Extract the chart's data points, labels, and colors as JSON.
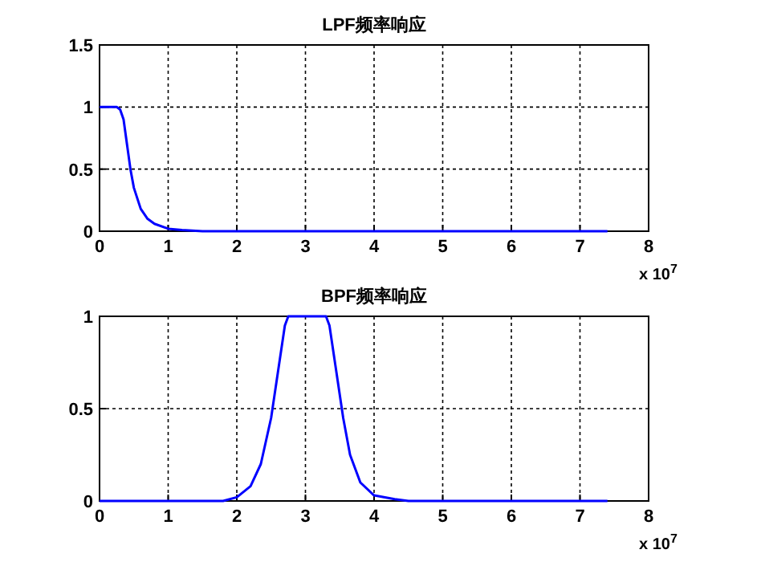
{
  "chart_data": [
    {
      "type": "line",
      "title": "LPF频率响应",
      "xlim": [
        0,
        8
      ],
      "ylim": [
        0,
        1.5
      ],
      "xticks": [
        0,
        1,
        2,
        3,
        4,
        5,
        6,
        7,
        8
      ],
      "yticks": [
        0,
        0.5,
        1,
        1.5
      ],
      "grid": true,
      "annotations": [
        "x 10$^{7}$"
      ],
      "series": [
        {
          "color": "#0000ff",
          "x": [
            0,
            0.25,
            0.3,
            0.35,
            0.4,
            0.45,
            0.5,
            0.6,
            0.7,
            0.8,
            1.0,
            1.2,
            1.5,
            7.4
          ],
          "values": [
            1,
            1,
            0.98,
            0.9,
            0.7,
            0.5,
            0.35,
            0.18,
            0.1,
            0.06,
            0.02,
            0.01,
            0,
            0
          ]
        }
      ]
    },
    {
      "type": "line",
      "title": "BPF频率响应",
      "xlim": [
        0,
        8
      ],
      "ylim": [
        0,
        1
      ],
      "xticks": [
        0,
        1,
        2,
        3,
        4,
        5,
        6,
        7,
        8
      ],
      "yticks": [
        0,
        0.5,
        1
      ],
      "grid": true,
      "annotations": [
        "x 10$^{7}$"
      ],
      "series": [
        {
          "color": "#0000ff",
          "x": [
            0,
            1.8,
            2,
            2.2,
            2.35,
            2.5,
            2.6,
            2.7,
            2.75,
            3.3,
            3.35,
            3.45,
            3.55,
            3.65,
            3.8,
            4.0,
            4.3,
            4.5,
            7.4
          ],
          "values": [
            0,
            0,
            0.02,
            0.08,
            0.2,
            0.45,
            0.7,
            0.95,
            1,
            1,
            0.95,
            0.7,
            0.45,
            0.25,
            0.1,
            0.03,
            0.01,
            0,
            0
          ]
        }
      ]
    }
  ]
}
